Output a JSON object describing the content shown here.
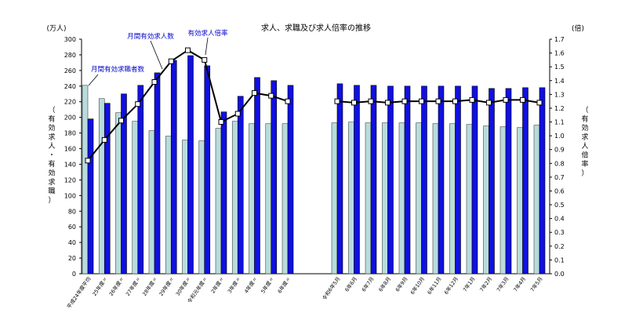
{
  "chart_data": {
    "type": "bar",
    "title": "求人、求職及び求人倍率の推移",
    "left_axis": {
      "unit": "(万人)",
      "label": "（有効求人・有効求職）",
      "ylim": [
        0,
        300
      ],
      "ticks": [
        0,
        20,
        40,
        60,
        80,
        100,
        120,
        140,
        160,
        180,
        200,
        220,
        240,
        260,
        280,
        300
      ]
    },
    "right_axis": {
      "unit": "(倍)",
      "label": "（有効求人倍率）",
      "ylim": [
        0.0,
        1.7
      ],
      "ticks": [
        "0.0",
        "0.1",
        "0.2",
        "0.3",
        "0.4",
        "0.5",
        "0.6",
        "0.7",
        "0.8",
        "0.9",
        "1.0",
        "1.1",
        "1.2",
        "1.3",
        "1.4",
        "1.5",
        "1.6",
        "1.7"
      ]
    },
    "categories": [
      "平成24年度平均",
      "25年度〃",
      "26年度〃",
      "27年度〃",
      "28年度〃",
      "29年度〃",
      "30年度〃",
      "令和元年度〃",
      "2年度〃",
      "3年度〃",
      "4年度〃",
      "5年度〃",
      "6年度〃",
      "令和6年5月",
      "6年6月",
      "6年7月",
      "6年8月",
      "6年9月",
      "6年10月",
      "6年11月",
      "6年12月",
      "7年1月",
      "7年2月",
      "7年3月",
      "7年4月",
      "7年5月"
    ],
    "series": [
      {
        "name": "月間有効求職者数",
        "axis": "left",
        "color": "#b8dcdc",
        "values": [
          241,
          224,
          206,
          195,
          183,
          176,
          171,
          170,
          186,
          195,
          192,
          192,
          192,
          193,
          194,
          193,
          193,
          193,
          193,
          192,
          192,
          191,
          189,
          188,
          187,
          190
        ]
      },
      {
        "name": "月間有効求人数",
        "axis": "left",
        "color": "#1010e0",
        "values": [
          198,
          218,
          230,
          241,
          257,
          273,
          279,
          266,
          207,
          227,
          251,
          247,
          241,
          243,
          241,
          241,
          240,
          240,
          240,
          240,
          240,
          240,
          237,
          237,
          238,
          238
        ]
      },
      {
        "name": "有効求人倍率",
        "axis": "right",
        "type": "line",
        "values": [
          0.82,
          0.97,
          1.11,
          1.23,
          1.39,
          1.54,
          1.62,
          1.55,
          1.1,
          1.16,
          1.31,
          1.29,
          1.25,
          1.25,
          1.24,
          1.25,
          1.24,
          1.25,
          1.25,
          1.25,
          1.25,
          1.26,
          1.24,
          1.26,
          1.26,
          1.24
        ]
      }
    ],
    "annotations": [
      {
        "text": "月間有効求人数"
      },
      {
        "text": "有効求人倍率"
      },
      {
        "text": "月間有効求職者数"
      }
    ]
  }
}
